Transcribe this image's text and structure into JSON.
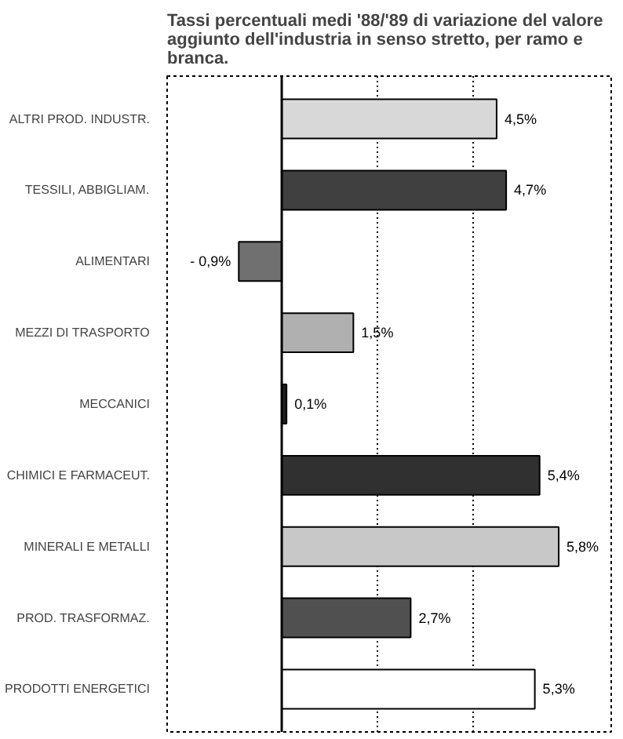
{
  "chart_data": {
    "type": "bar",
    "orientation": "horizontal",
    "title": "Tassi percentuali medi '88/'89 di variazione del valore aggiunto dell'industria in senso stretto, per ramo e branca.",
    "categories": [
      "ALTRI PROD. INDUSTR.",
      "TESSILI, ABBIGLIAM.",
      "ALIMENTARI",
      "MEZZI DI TRASPORTO",
      "MECCANICI",
      "CHIMICI E FARMACEUT.",
      "MINERALI E METALLI",
      "PROD. TRASFORMAZ.",
      "PRODOTTI ENERGETICI"
    ],
    "values": [
      4.5,
      4.7,
      -0.9,
      1.5,
      0.1,
      5.4,
      5.8,
      2.7,
      5.3
    ],
    "colors": [
      "#d8d8d8",
      "#404040",
      "#707070",
      "#b0b0b0",
      "#202020",
      "#303030",
      "#c8c8c8",
      "#505050",
      "#ffffff"
    ],
    "value_labels": [
      "4,5%",
      "4,7%",
      "- 0,9%",
      "1,5%",
      "0,1%",
      "5,4%",
      "5,8%",
      "2,7%",
      "5,3%"
    ],
    "xlim": [
      -2.4,
      6.9
    ],
    "xticks": [
      {
        "value": 0,
        "label": null
      },
      {
        "value": 2,
        "label": null
      },
      {
        "value": 4,
        "label": null
      }
    ],
    "grid": "x"
  }
}
